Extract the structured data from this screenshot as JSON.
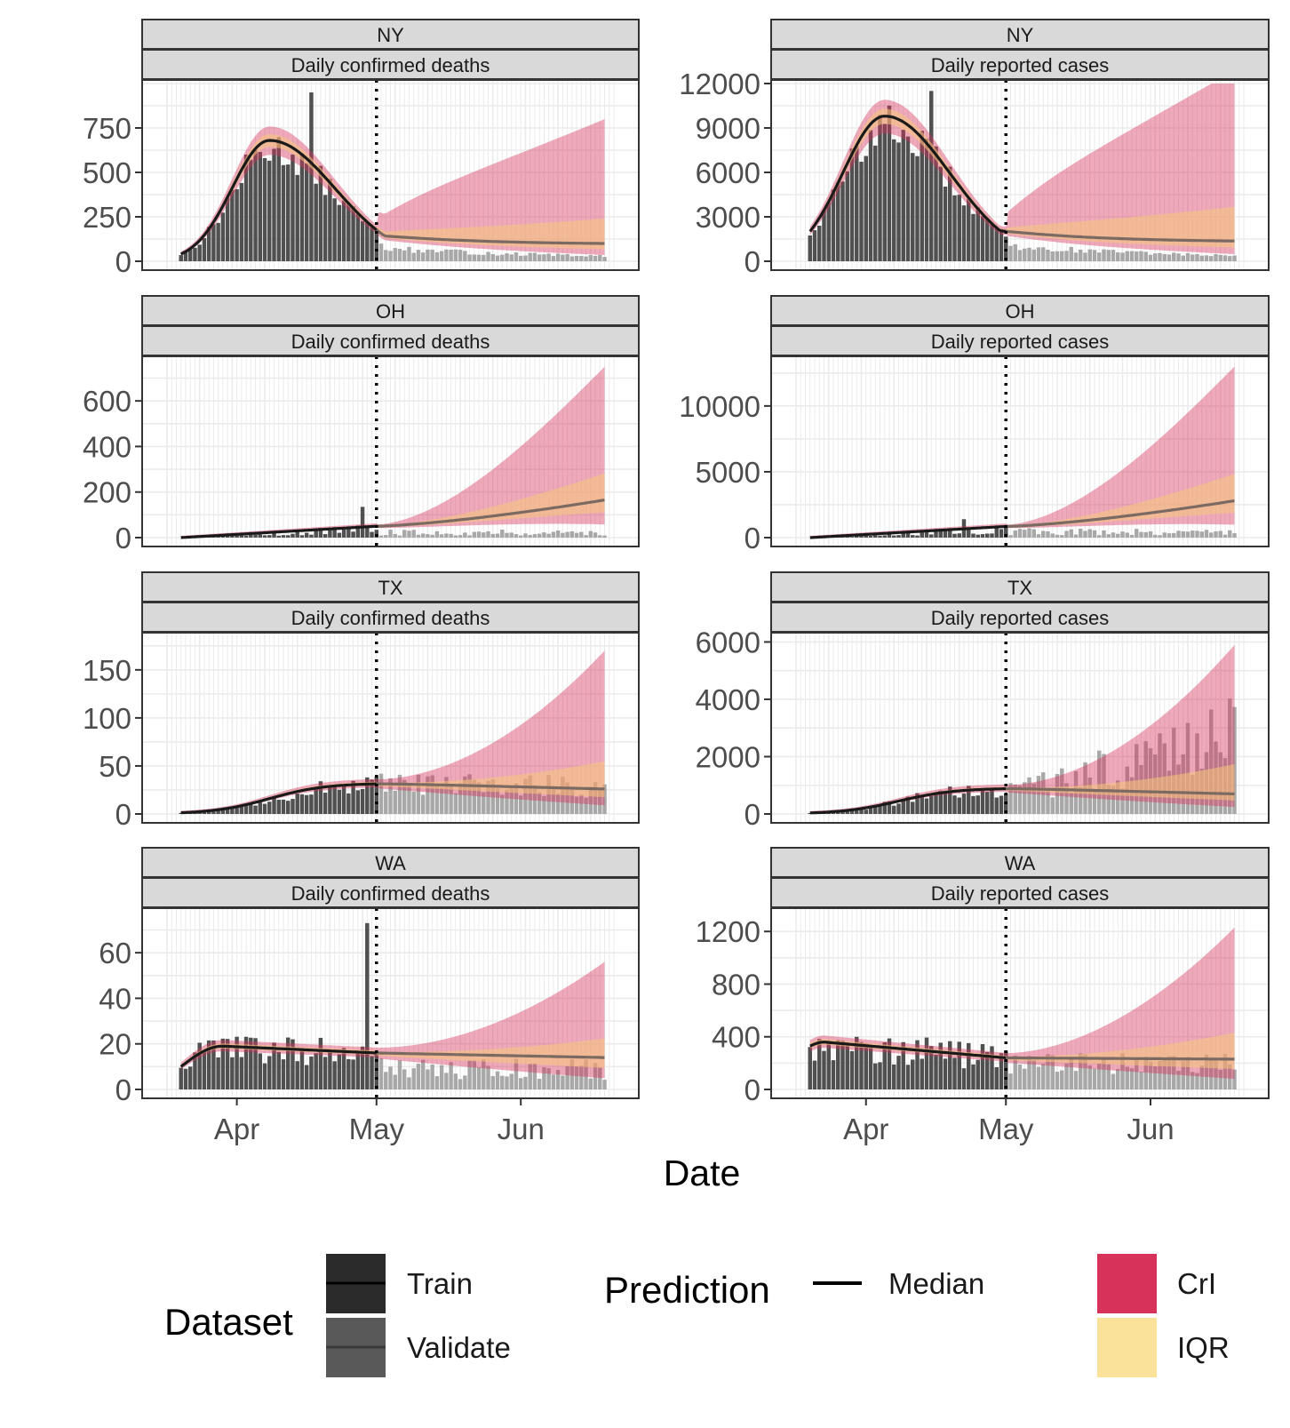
{
  "colors": {
    "train": "#474747",
    "validate": "#9a9a9a",
    "median": "#1a1a1a",
    "median_validate": "#7b6a62",
    "cri": "#d6325a",
    "iqr": "#f5c87a",
    "legend_train": "#2b2b2b",
    "legend_validate": "#595959",
    "legend_cri": "#d6325a",
    "legend_iqr": "#fbe29a",
    "grid": "#ebebeb",
    "strip_fill": "#d9d9d9",
    "panel_border": "#333333"
  },
  "chart_data": {
    "type": "bar",
    "x_axis": {
      "title": "Date",
      "ticks": [
        "Apr",
        "May",
        "Jun"
      ],
      "range": [
        "2020-03-17",
        "2020-06-21"
      ],
      "split_date": "2020-05-01"
    },
    "grid": true,
    "legend": {
      "placement": "bottom",
      "dataset_title": "Dataset",
      "dataset_items": [
        "Train",
        "Validate"
      ],
      "prediction_title": "Prediction",
      "median_label": "Median",
      "band_items": [
        "CrI",
        "IQR"
      ]
    },
    "panels": [
      {
        "state": "NY",
        "metric": "Daily confirmed deaths",
        "column": 0,
        "row": 0,
        "ylim": [
          0,
          1000
        ],
        "yticks": [
          0,
          250,
          500,
          750
        ],
        "yticklabels": [
          "0",
          "250",
          "500",
          "750"
        ],
        "peak": 680,
        "peak_day": 22,
        "sd_left": 8,
        "sd_right": 14,
        "tail": 95,
        "spike": {
          "day": 31,
          "value": 950
        },
        "spread_bottom": 0.7,
        "spread_top": 7.5
      },
      {
        "state": "NY",
        "metric": "Daily reported cases",
        "column": 1,
        "row": 0,
        "ylim": [
          0,
          12000
        ],
        "yticks": [
          0,
          3000,
          6000,
          9000,
          12000
        ],
        "yticklabels": [
          "0",
          "3000",
          "6000",
          "9000",
          "12000"
        ],
        "peak": 9800,
        "peak_day": 19,
        "sd_left": 9,
        "sd_right": 14,
        "tail": 1300,
        "spike": {
          "day": 29,
          "value": 11500
        },
        "spread_bottom": 0.3,
        "spread_top": 9
      },
      {
        "state": "OH",
        "metric": "Daily confirmed deaths",
        "column": 0,
        "row": 1,
        "ylim": [
          0,
          780
        ],
        "yticks": [
          0,
          200,
          400,
          600
        ],
        "yticklabels": [
          "0",
          "200",
          "400",
          "600"
        ],
        "start": 0,
        "end_train": 50,
        "end": 165,
        "obs": 22,
        "spike": {
          "day": 42,
          "value": 135
        },
        "upper_end": 750
      },
      {
        "state": "OH",
        "metric": "Daily reported cases",
        "column": 1,
        "row": 1,
        "ylim": [
          0,
          13500
        ],
        "yticks": [
          0,
          5000,
          10000
        ],
        "yticklabels": [
          "0",
          "5000",
          "10000"
        ],
        "start": 0,
        "end_train": 850,
        "end": 2800,
        "obs": 450,
        "spike": {
          "day": 36,
          "value": 1400
        },
        "upper_end": 13000
      },
      {
        "state": "TX",
        "metric": "Daily confirmed deaths",
        "column": 0,
        "row": 2,
        "ylim": [
          0,
          185
        ],
        "yticks": [
          0,
          50,
          100,
          150
        ],
        "yticklabels": [
          "0",
          "50",
          "100",
          "150"
        ],
        "plateau": 32,
        "end": 26,
        "obs": 28,
        "upper_end": 170
      },
      {
        "state": "TX",
        "metric": "Daily reported cases",
        "column": 1,
        "row": 2,
        "ylim": [
          0,
          6200
        ],
        "yticks": [
          0,
          2000,
          4000,
          6000
        ],
        "yticklabels": [
          "0",
          "2000",
          "4000",
          "6000"
        ],
        "plateau": 900,
        "end": 700,
        "obs": 850,
        "upper_end": 5900
      },
      {
        "state": "WA",
        "metric": "Daily confirmed deaths",
        "column": 0,
        "row": 3,
        "ylim": [
          0,
          78
        ],
        "yticks": [
          0,
          20,
          40,
          60
        ],
        "yticklabels": [
          "0",
          "20",
          "40",
          "60"
        ],
        "start": 10,
        "peak": 19,
        "peak_day": 12,
        "end_train": 16,
        "end": 14,
        "obs": 9,
        "spike": {
          "day": 43,
          "value": 73
        },
        "upper_end": 56
      },
      {
        "state": "WA",
        "metric": "Daily reported cases",
        "column": 1,
        "row": 3,
        "ylim": [
          0,
          1350
        ],
        "yticks": [
          0,
          400,
          800,
          1200
        ],
        "yticklabels": [
          "0",
          "400",
          "800",
          "1200"
        ],
        "start": 330,
        "peak": 360,
        "peak_day": 6,
        "end_train": 240,
        "end": 230,
        "obs": 170,
        "upper_end": 1230
      }
    ]
  }
}
